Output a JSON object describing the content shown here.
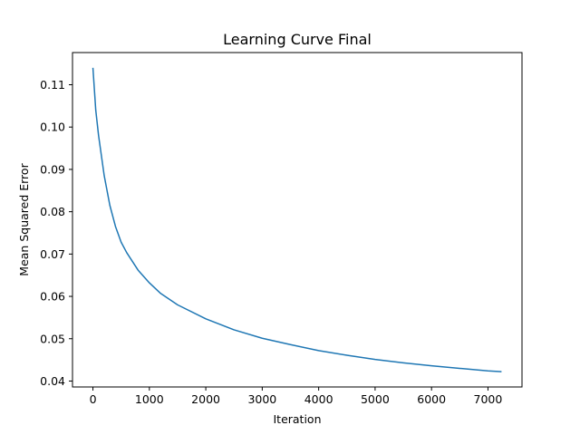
{
  "chart_data": {
    "type": "line",
    "title": "Learning Curve Final",
    "xlabel": "Iteration",
    "ylabel": "Mean Squared Error",
    "xlim": [
      -362,
      7603
    ],
    "ylim": [
      0.0386,
      0.1176
    ],
    "xticks": [
      0,
      1000,
      2000,
      3000,
      4000,
      5000,
      6000,
      7000
    ],
    "xtick_labels": [
      "0",
      "1000",
      "2000",
      "3000",
      "4000",
      "5000",
      "6000",
      "7000"
    ],
    "yticks": [
      0.04,
      0.05,
      0.06,
      0.07,
      0.08,
      0.09,
      0.1,
      0.11
    ],
    "ytick_labels": [
      "0.04",
      "0.05",
      "0.06",
      "0.07",
      "0.08",
      "0.09",
      "0.10",
      "0.11"
    ],
    "grid": false,
    "series": [
      {
        "color": "#1f77b4",
        "x": [
          0,
          50,
          100,
          200,
          300,
          400,
          500,
          600,
          800,
          1000,
          1200,
          1500,
          2000,
          2500,
          3000,
          3500,
          4000,
          4500,
          5000,
          5500,
          6000,
          6500,
          7000,
          7240
        ],
        "y": [
          0.114,
          0.104,
          0.098,
          0.0885,
          0.0815,
          0.0765,
          0.0728,
          0.0703,
          0.0662,
          0.0632,
          0.0607,
          0.058,
          0.0547,
          0.0521,
          0.0501,
          0.0486,
          0.0472,
          0.0461,
          0.0451,
          0.0443,
          0.0436,
          0.043,
          0.0424,
          0.0422
        ]
      }
    ]
  }
}
